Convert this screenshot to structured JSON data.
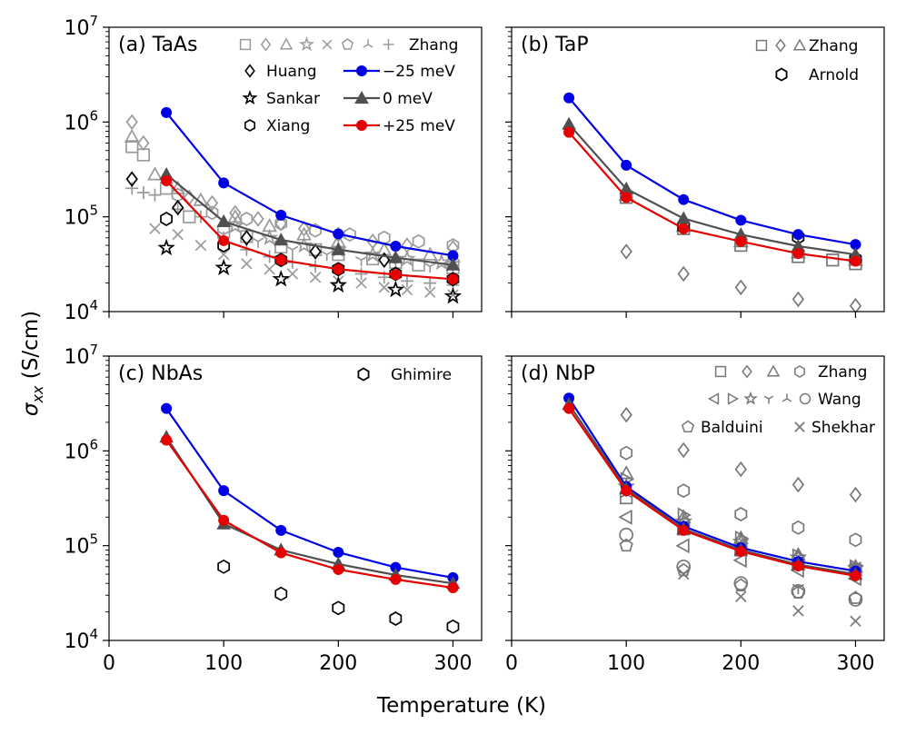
{
  "figure": {
    "xlabel": "Temperature (K)",
    "ylabel_base": "σ",
    "ylabel_sub": "xx",
    "ylabel_units": " (S/cm)"
  },
  "colors": {
    "neg25": "#0000e6",
    "zero": "#505050",
    "pos25": "#e60000",
    "exp_light": "#9a9a9a",
    "exp_dark": "#000000",
    "exp_mid": "#777777"
  },
  "chart_data": [
    {
      "id": "a",
      "type": "line",
      "title": "(a) TaAs",
      "xlim": [
        0,
        325
      ],
      "ylim_log10": [
        4,
        7
      ],
      "x_ticks": [
        0,
        100,
        200,
        300
      ],
      "series": [
        {
          "name": "−25 meV",
          "marker": "circle",
          "color": "#0000e6",
          "x": [
            50,
            100,
            150,
            200,
            250,
            300
          ],
          "y": [
            1260000,
            228000,
            104000,
            66000,
            49000,
            39000
          ]
        },
        {
          "name": "0 meV",
          "marker": "triangle",
          "color": "#505050",
          "x": [
            50,
            100,
            150,
            200,
            250,
            300
          ],
          "y": [
            280000,
            89000,
            57000,
            45000,
            37000,
            31000
          ]
        },
        {
          "name": "+25 meV",
          "marker": "circle",
          "color": "#e60000",
          "x": [
            50,
            100,
            150,
            200,
            250,
            300
          ],
          "y": [
            240000,
            56000,
            35000,
            28000,
            24500,
            22000
          ]
        }
      ],
      "experiments": [
        {
          "name": "Zhang",
          "marker": "square",
          "color": "#9a9a9a",
          "x": [
            20,
            30,
            50,
            70,
            100,
            120,
            150,
            180,
            200,
            230,
            250,
            270,
            300
          ],
          "y": [
            550000,
            450000,
            200000,
            100000,
            70000,
            62000,
            48000,
            45000,
            40000,
            36000,
            33000,
            31000,
            29000
          ]
        },
        {
          "name": "Zhang",
          "marker": "diamond",
          "color": "#9a9a9a",
          "x": [
            20,
            30,
            50,
            70,
            90,
            110,
            130,
            150,
            170,
            200,
            230,
            260,
            300
          ],
          "y": [
            1000000,
            600000,
            250000,
            160000,
            140000,
            110000,
            95000,
            85000,
            75000,
            65000,
            55000,
            50000,
            47000
          ]
        },
        {
          "name": "Zhang",
          "marker": "triangle",
          "color": "#9a9a9a",
          "x": [
            20,
            40,
            60,
            80,
            110,
            140,
            170,
            200,
            240,
            280,
            300
          ],
          "y": [
            700000,
            280000,
            200000,
            150000,
            100000,
            80000,
            65000,
            55000,
            45000,
            40000,
            38000
          ]
        },
        {
          "name": "Zhang",
          "marker": "hexagon",
          "color": "#9a9a9a",
          "x": [
            60,
            90,
            120,
            150,
            180,
            210,
            240,
            270,
            300
          ],
          "y": [
            170000,
            110000,
            95000,
            85000,
            72000,
            65000,
            60000,
            55000,
            50000
          ]
        },
        {
          "name": "Zhang",
          "marker": "plus",
          "color": "#9a9a9a",
          "x": [
            20,
            30,
            40,
            60,
            80,
            100,
            120,
            140,
            160,
            180,
            200,
            220,
            240,
            260,
            280,
            300
          ],
          "y": [
            200000,
            180000,
            170000,
            120000,
            100000,
            60000,
            45000,
            38000,
            33000,
            30000,
            27000,
            25000,
            23000,
            21000,
            20000,
            19000
          ]
        },
        {
          "name": "Zhang",
          "marker": "x",
          "color": "#9a9a9a",
          "x": [
            40,
            60,
            80,
            100,
            120,
            140,
            160,
            180,
            200,
            220,
            240,
            260,
            280,
            300
          ],
          "y": [
            75000,
            65000,
            50000,
            40000,
            32000,
            28000,
            25000,
            23000,
            21000,
            20000,
            18000,
            17000,
            16000,
            15000
          ]
        },
        {
          "name": "Zhang",
          "marker": "tri_down",
          "color": "#9a9a9a",
          "x": [
            100,
            130,
            160,
            190,
            220,
            250,
            280,
            300
          ],
          "y": [
            65000,
            55000,
            45000,
            40000,
            35000,
            32000,
            30000,
            29000
          ]
        },
        {
          "name": "Zhang",
          "marker": "star",
          "color": "#9a9a9a",
          "x": [
            110,
            140,
            170,
            200,
            230,
            260,
            290
          ],
          "y": [
            80000,
            60000,
            50000,
            45000,
            40000,
            36000,
            33000
          ]
        },
        {
          "name": "Huang",
          "marker": "diamond",
          "color": "#000000",
          "x": [
            20,
            60,
            120,
            180,
            240
          ],
          "y": [
            250000,
            125000,
            60000,
            43000,
            35000
          ]
        },
        {
          "name": "Sankar",
          "marker": "star",
          "color": "#000000",
          "x": [
            50,
            100,
            150,
            200,
            250,
            300
          ],
          "y": [
            47000,
            29000,
            22000,
            19000,
            17000,
            14500
          ]
        },
        {
          "name": "Xiang",
          "marker": "hexagon",
          "color": "#000000",
          "x": [
            50,
            100,
            150,
            200,
            250,
            300
          ],
          "y": [
            95000,
            50000,
            35000,
            28000,
            25000,
            22000
          ]
        }
      ],
      "legend": {
        "exp_line": "Zhang",
        "entries": [
          "Huang",
          "Sankar",
          "Xiang"
        ],
        "model": [
          "−25 meV",
          "0   meV",
          "+25 meV"
        ]
      }
    },
    {
      "id": "b",
      "type": "line",
      "title": "(b) TaP",
      "xlim": [
        0,
        325
      ],
      "ylim_log10": [
        4,
        7
      ],
      "x_ticks": [
        0,
        100,
        200,
        300
      ],
      "series": [
        {
          "name": "−25 meV",
          "marker": "circle",
          "color": "#0000e6",
          "x": [
            50,
            100,
            150,
            200,
            250,
            300
          ],
          "y": [
            1800000,
            350000,
            152000,
            92000,
            65000,
            51000
          ]
        },
        {
          "name": "0 meV",
          "marker": "triangle",
          "color": "#505050",
          "x": [
            50,
            100,
            150,
            200,
            250,
            300
          ],
          "y": [
            950000,
            197000,
            96000,
            65000,
            49000,
            40000
          ]
        },
        {
          "name": "+25 meV",
          "marker": "circle",
          "color": "#e60000",
          "x": [
            50,
            100,
            150,
            200,
            250,
            300
          ],
          "y": [
            780000,
            160000,
            75000,
            55000,
            41000,
            34000
          ]
        }
      ],
      "experiments": [
        {
          "name": "Zhang",
          "marker": "square",
          "color": "#777777",
          "x": [
            100,
            150,
            200,
            250,
            280,
            300
          ],
          "y": [
            160000,
            75000,
            50000,
            38000,
            35000,
            32000
          ]
        },
        {
          "name": "Zhang",
          "marker": "diamond",
          "color": "#777777",
          "x": [
            100,
            150,
            200,
            250,
            300
          ],
          "y": [
            43000,
            25000,
            18000,
            13500,
            11500
          ]
        },
        {
          "name": "Zhang",
          "marker": "triangle",
          "color": "#777777",
          "x": [
            100,
            150,
            200,
            250,
            300
          ],
          "y": [
            170000,
            80000,
            55000,
            42000,
            35000
          ]
        },
        {
          "name": "Arnold",
          "marker": "hexagon",
          "color": "#000000",
          "x": [
            150,
            250,
            300
          ],
          "y": [
            78000,
            61000,
            36000
          ]
        }
      ],
      "legend": {
        "exp_line": "Zhang",
        "entries": [
          "Arnold"
        ]
      }
    },
    {
      "id": "c",
      "type": "line",
      "title": "(c) NbAs",
      "xlim": [
        0,
        325
      ],
      "ylim_log10": [
        4,
        7
      ],
      "x_ticks": [
        0,
        100,
        200,
        300
      ],
      "series": [
        {
          "name": "−25 meV",
          "marker": "circle",
          "color": "#0000e6",
          "x": [
            50,
            100,
            150,
            200,
            250,
            300
          ],
          "y": [
            2800000,
            380000,
            145000,
            85000,
            59000,
            46000
          ]
        },
        {
          "name": "0 meV",
          "marker": "triangle",
          "color": "#505050",
          "x": [
            50,
            100,
            150,
            200,
            250,
            300
          ],
          "y": [
            1400000,
            170000,
            90000,
            64000,
            49000,
            40000
          ]
        },
        {
          "name": "+25 meV",
          "marker": "circle",
          "color": "#e60000",
          "x": [
            50,
            100,
            150,
            200,
            250,
            300
          ],
          "y": [
            1300000,
            185000,
            84000,
            56000,
            44000,
            36000
          ]
        }
      ],
      "experiments": [
        {
          "name": "Ghimire",
          "marker": "hexagon",
          "color": "#000000",
          "x": [
            100,
            150,
            200,
            250,
            300
          ],
          "y": [
            60000,
            31000,
            22000,
            17000,
            14000
          ]
        }
      ],
      "legend": {
        "entries": [
          "Ghimire"
        ]
      }
    },
    {
      "id": "d",
      "type": "line",
      "title": "(d) NbP",
      "xlim": [
        0,
        325
      ],
      "ylim_log10": [
        4,
        7
      ],
      "x_ticks": [
        0,
        100,
        200,
        300
      ],
      "series": [
        {
          "name": "−25 meV",
          "marker": "circle",
          "color": "#0000e6",
          "x": [
            50,
            100,
            150,
            200,
            250,
            300
          ],
          "y": [
            3600000,
            420000,
            160000,
            95000,
            68000,
            54000
          ]
        },
        {
          "name": "0 meV",
          "marker": "triangle",
          "color": "#505050",
          "x": [
            50,
            100,
            150,
            200,
            250,
            300
          ],
          "y": [
            3100000,
            400000,
            150000,
            90000,
            63000,
            50000
          ]
        },
        {
          "name": "+25 meV",
          "marker": "circle",
          "color": "#e60000",
          "x": [
            50,
            100,
            150,
            200,
            250,
            300
          ],
          "y": [
            2800000,
            380000,
            145000,
            87000,
            61000,
            48000
          ]
        }
      ],
      "experiments": [
        {
          "name": "Zhang",
          "marker": "square",
          "color": "#777777",
          "x": [
            100,
            150,
            200,
            250,
            300
          ],
          "y": [
            320000,
            150000,
            90000,
            65000,
            55000
          ]
        },
        {
          "name": "Zhang",
          "marker": "diamond",
          "color": "#777777",
          "x": [
            100,
            150,
            200,
            250,
            300
          ],
          "y": [
            2400000,
            1020000,
            640000,
            440000,
            345000
          ]
        },
        {
          "name": "Zhang",
          "marker": "triangle",
          "color": "#777777",
          "x": [
            100,
            150,
            200,
            250,
            300
          ],
          "y": [
            580000,
            200000,
            120000,
            80000,
            60000
          ]
        },
        {
          "name": "Zhang",
          "marker": "hexagon",
          "color": "#777777",
          "x": [
            100,
            150,
            200,
            250,
            300
          ],
          "y": [
            950000,
            380000,
            215000,
            155000,
            115000
          ]
        },
        {
          "name": "Wang",
          "marker": "tri_left",
          "color": "#777777",
          "x": [
            100,
            150,
            200,
            250,
            300
          ],
          "y": [
            200000,
            100000,
            70000,
            55000,
            45000
          ]
        },
        {
          "name": "Wang",
          "marker": "tri_right",
          "color": "#777777",
          "x": [
            100,
            150,
            200,
            250,
            300
          ],
          "y": [
            500000,
            210000,
            120000,
            78000,
            60000
          ]
        },
        {
          "name": "Wang",
          "marker": "star",
          "color": "#777777",
          "x": [
            100,
            150,
            200,
            250,
            300
          ],
          "y": [
            420000,
            180000,
            110000,
            75000,
            58000
          ]
        },
        {
          "name": "Wang",
          "marker": "tri_down",
          "color": "#777777",
          "x": [
            100,
            150,
            200,
            250,
            300
          ],
          "y": [
            380000,
            170000,
            105000,
            36000,
            62000
          ]
        },
        {
          "name": "Wang",
          "marker": "tri_up",
          "color": "#777777",
          "x": [
            100,
            150,
            200,
            250,
            300
          ],
          "y": [
            350000,
            160000,
            100000,
            68000,
            55000
          ]
        },
        {
          "name": "Wang",
          "marker": "circle_open",
          "color": "#777777",
          "x": [
            100,
            150,
            200,
            250,
            300
          ],
          "y": [
            130000,
            60000,
            40000,
            33000,
            27000
          ]
        },
        {
          "name": "Balduini",
          "marker": "pentagon",
          "color": "#777777",
          "x": [
            100,
            150,
            200,
            250,
            300
          ],
          "y": [
            100000,
            55000,
            38000,
            32000,
            28000
          ]
        },
        {
          "name": "Shekhar",
          "marker": "x",
          "color": "#777777",
          "x": [
            150,
            200,
            250,
            300
          ],
          "y": [
            50000,
            29000,
            20500,
            16000
          ]
        }
      ],
      "legend": {
        "line1": "Zhang",
        "line2": "Wang",
        "line3a": "Balduini",
        "line3b": "Shekhar"
      }
    }
  ]
}
